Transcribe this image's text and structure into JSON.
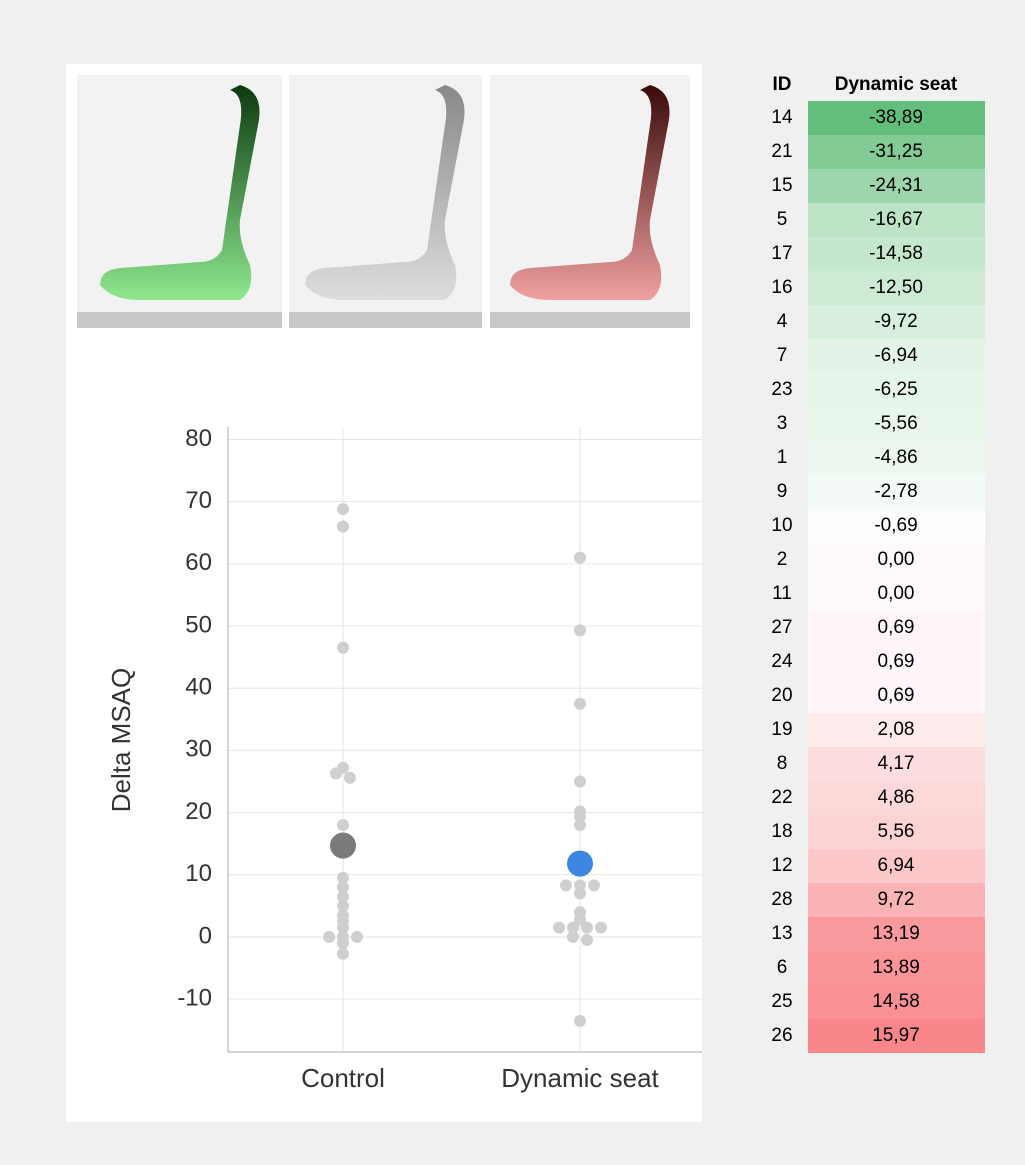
{
  "chart_data": {
    "type": "strip",
    "ylabel": "Delta MSAQ",
    "categories": [
      "Control",
      "Dynamic seat"
    ],
    "points": [
      [
        68.8,
        66,
        46.5,
        27.2,
        26.3,
        25.6,
        18,
        15.5,
        13.5,
        9.5,
        8,
        6.5,
        5,
        3.5,
        2.5,
        1.5,
        0,
        0,
        0,
        -1,
        -2.7
      ],
      [
        61,
        49.3,
        37.5,
        25,
        20.2,
        19.4,
        18,
        8.3,
        8.3,
        8.3,
        7,
        4,
        2.8,
        1.5,
        1.5,
        1.5,
        1.5,
        0,
        -0.5,
        -13.5
      ]
    ],
    "means": [
      14.7,
      11.8
    ],
    "point_color": "#cfcfcf",
    "mean_colors": [
      "#7a7a7a",
      "#3a86e0"
    ],
    "ylim": [
      -18.5,
      82
    ],
    "yticks": [
      -10,
      0,
      10,
      20,
      30,
      40,
      50,
      60,
      70,
      80
    ],
    "grid": true
  },
  "table": {
    "header": [
      "ID",
      "Dynamic seat"
    ],
    "rows": [
      [
        "14",
        "-38,89"
      ],
      [
        "21",
        "-31,25"
      ],
      [
        "15",
        "-24,31"
      ],
      [
        "5",
        "-16,67"
      ],
      [
        "17",
        "-14,58"
      ],
      [
        "16",
        "-12,50"
      ],
      [
        "4",
        "-9,72"
      ],
      [
        "7",
        "-6,94"
      ],
      [
        "23",
        "-6,25"
      ],
      [
        "3",
        "-5,56"
      ],
      [
        "1",
        "-4,86"
      ],
      [
        "9",
        "-2,78"
      ],
      [
        "10",
        "-0,69"
      ],
      [
        "2",
        "0,00"
      ],
      [
        "11",
        "0,00"
      ],
      [
        "27",
        "0,69"
      ],
      [
        "24",
        "0,69"
      ],
      [
        "20",
        "0,69"
      ],
      [
        "19",
        "2,08"
      ],
      [
        "8",
        "4,17"
      ],
      [
        "22",
        "4,86"
      ],
      [
        "18",
        "5,56"
      ],
      [
        "12",
        "6,94"
      ],
      [
        "28",
        "9,72"
      ],
      [
        "13",
        "13,19"
      ],
      [
        "6",
        "13,89"
      ],
      [
        "25",
        "14,58"
      ],
      [
        "26",
        "15,97"
      ]
    ],
    "low_color": "#63be7b",
    "high_color": "#f8868a"
  }
}
